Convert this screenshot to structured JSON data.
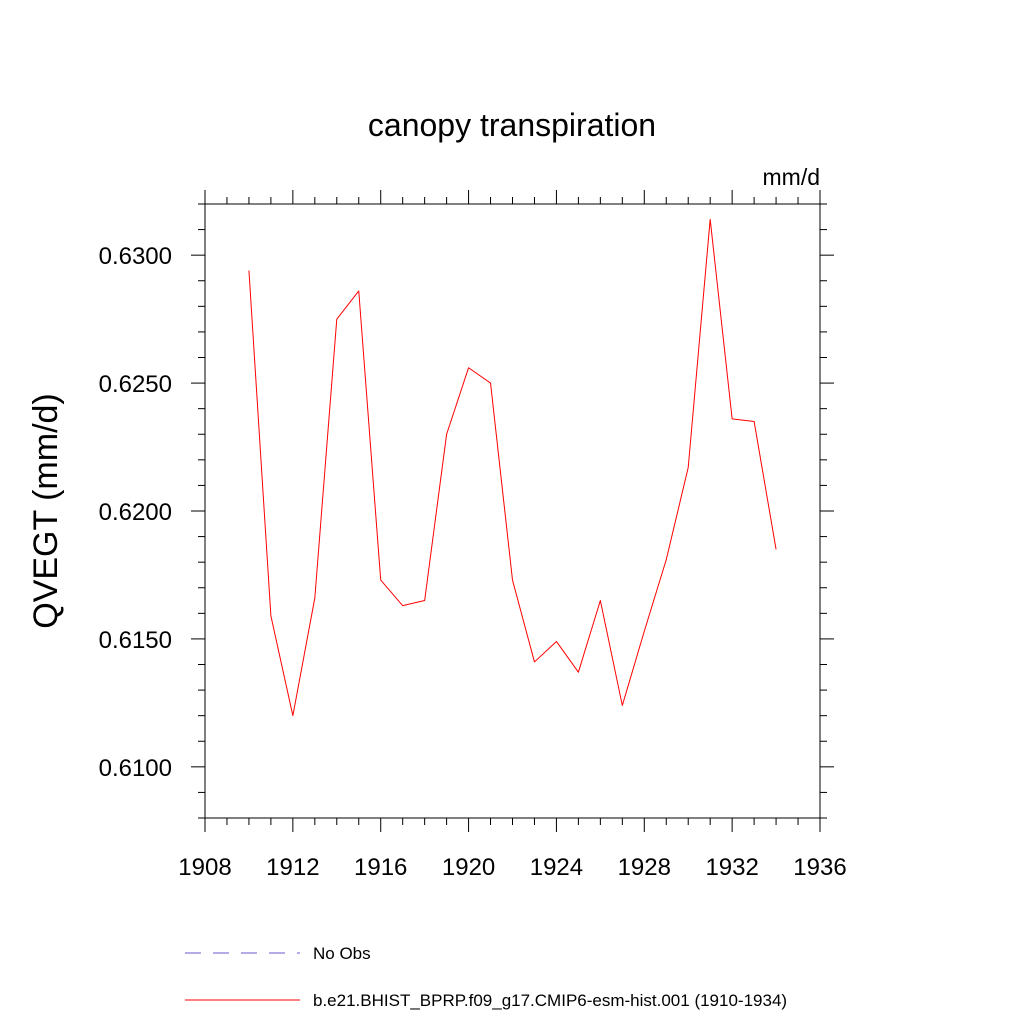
{
  "chart_data": {
    "type": "line",
    "title": "canopy transpiration",
    "units": "mm/d",
    "ylabel": "QVEGT  (mm/d)",
    "xlabel": "",
    "xlim": [
      1908,
      1936
    ],
    "ylim": [
      0.608,
      0.632
    ],
    "x_ticks": [
      1908,
      1912,
      1916,
      1920,
      1924,
      1928,
      1932,
      1936
    ],
    "x_tick_labels": [
      "1908",
      "1912",
      "1916",
      "1920",
      "1924",
      "1928",
      "1932",
      "1936"
    ],
    "y_ticks": [
      0.61,
      0.615,
      0.62,
      0.625,
      0.63
    ],
    "y_tick_labels": [
      "0.6100",
      "0.6150",
      "0.6200",
      "0.6250",
      "0.6300"
    ],
    "grid": false,
    "legend_position": "bottom",
    "series": [
      {
        "name": "b.e21.BHIST_BPRP.f09_g17.CMIP6-esm-hist.001 (1910-1934)",
        "color": "#ff0000",
        "style": "solid",
        "x": [
          1910,
          1911,
          1912,
          1913,
          1914,
          1915,
          1916,
          1917,
          1918,
          1919,
          1920,
          1921,
          1922,
          1923,
          1924,
          1925,
          1926,
          1927,
          1928,
          1929,
          1930,
          1931,
          1932,
          1933,
          1934
        ],
        "y": [
          0.6294,
          0.6159,
          0.612,
          0.6166,
          0.6275,
          0.6286,
          0.6173,
          0.6163,
          0.6165,
          0.623,
          0.6256,
          0.625,
          0.6173,
          0.6141,
          0.6149,
          0.6137,
          0.6165,
          0.6124,
          0.6153,
          0.6181,
          0.6217,
          0.6314,
          0.6236,
          0.6235,
          0.6185
        ]
      },
      {
        "name": "No Obs",
        "color": "#6a5acd",
        "style": "dashed",
        "x": [],
        "y": []
      }
    ]
  }
}
